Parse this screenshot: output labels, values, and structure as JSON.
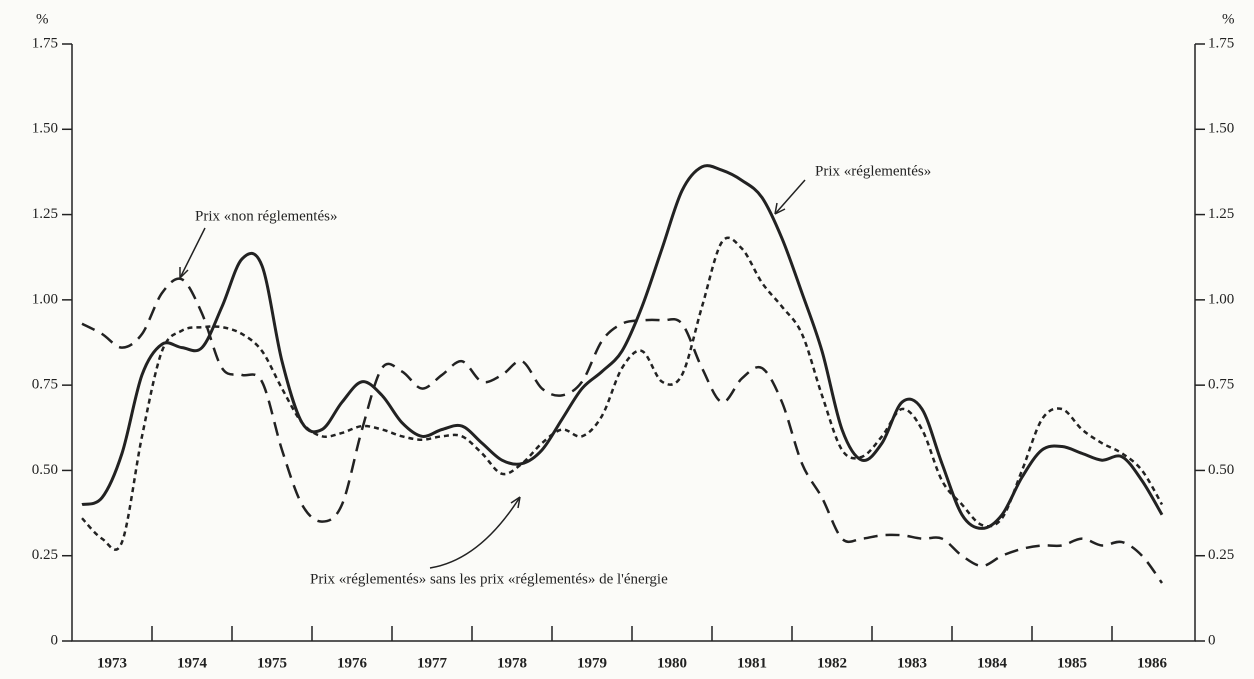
{
  "chart_data": {
    "type": "line",
    "y_unit": "%",
    "annotations": [
      "Prix «réglementés»",
      "Prix «non réglementés»",
      "Prix «réglementés» sans les prix «réglementés» de l'énergie"
    ],
    "year_labels": [
      "1973",
      "1974",
      "1975",
      "1976",
      "1977",
      "1978",
      "1979",
      "1980",
      "1981",
      "1982",
      "1983",
      "1984",
      "1985",
      "1986"
    ],
    "xlim": [
      1973,
      1987
    ],
    "xticks": [
      1974,
      1975,
      1976,
      1977,
      1978,
      1979,
      1980,
      1981,
      1982,
      1983,
      1984,
      1985,
      1986
    ],
    "ylim": [
      0,
      1.75
    ],
    "yticks": [
      0,
      0.25,
      {
        "value": 0.5,
        "label": "0.50"
      },
      {
        "value": 0.75,
        "label": "0.75"
      },
      {
        "value": 1,
        "label": "1.00"
      },
      1.25,
      {
        "value": 1.5,
        "label": "1.50"
      },
      1.75
    ],
    "x": [
      1973.125,
      1973.375,
      1973.625,
      1973.875,
      1974.125,
      1974.375,
      1974.625,
      1974.875,
      1975.125,
      1975.375,
      1975.625,
      1975.875,
      1976.125,
      1976.375,
      1976.625,
      1976.875,
      1977.125,
      1977.375,
      1977.625,
      1977.875,
      1978.125,
      1978.375,
      1978.625,
      1978.875,
      1979.125,
      1979.375,
      1979.625,
      1979.875,
      1980.125,
      1980.375,
      1980.625,
      1980.875,
      1981.125,
      1981.375,
      1981.625,
      1981.875,
      1982.125,
      1982.375,
      1982.625,
      1982.875,
      1983.125,
      1983.375,
      1983.625,
      1983.875,
      1984.125,
      1984.375,
      1984.625,
      1984.875,
      1985.125,
      1985.375,
      1985.625,
      1985.875,
      1986.125,
      1986.375,
      1986.625
    ],
    "series": [
      {
        "color": "#222222",
        "style": "solid",
        "values": [
          0.4,
          0.42,
          0.55,
          0.78,
          0.87,
          0.86,
          0.86,
          0.98,
          1.12,
          1.1,
          0.82,
          0.64,
          0.62,
          0.7,
          0.76,
          0.72,
          0.64,
          0.6,
          0.62,
          0.63,
          0.58,
          0.53,
          0.52,
          0.56,
          0.65,
          0.74,
          0.79,
          0.85,
          0.98,
          1.15,
          1.32,
          1.39,
          1.38,
          1.35,
          1.3,
          1.18,
          1.02,
          0.85,
          0.62,
          0.53,
          0.58,
          0.7,
          0.68,
          0.52,
          0.37,
          0.33,
          0.37,
          0.48,
          0.56,
          0.57,
          0.55,
          0.53,
          0.54,
          0.47,
          0.37
        ]
      },
      {
        "color": "#222222",
        "style": "dashed",
        "values": [
          0.93,
          0.9,
          0.86,
          0.9,
          1.02,
          1.06,
          0.96,
          0.8,
          0.78,
          0.76,
          0.56,
          0.4,
          0.35,
          0.4,
          0.62,
          0.8,
          0.79,
          0.74,
          0.78,
          0.82,
          0.76,
          0.78,
          0.82,
          0.74,
          0.72,
          0.76,
          0.88,
          0.93,
          0.94,
          0.94,
          0.93,
          0.8,
          0.7,
          0.77,
          0.8,
          0.7,
          0.52,
          0.42,
          0.3,
          0.3,
          0.31,
          0.31,
          0.3,
          0.3,
          0.25,
          0.22,
          0.25,
          0.27,
          0.28,
          0.28,
          0.3,
          0.28,
          0.29,
          0.25,
          0.17
        ]
      },
      {
        "color": "#222222",
        "style": "dotted",
        "values": [
          0.36,
          0.3,
          0.29,
          0.6,
          0.85,
          0.91,
          0.92,
          0.92,
          0.9,
          0.85,
          0.74,
          0.64,
          0.6,
          0.61,
          0.63,
          0.62,
          0.6,
          0.59,
          0.6,
          0.6,
          0.55,
          0.49,
          0.52,
          0.58,
          0.62,
          0.6,
          0.66,
          0.8,
          0.85,
          0.76,
          0.78,
          0.98,
          1.17,
          1.15,
          1.05,
          0.98,
          0.9,
          0.72,
          0.56,
          0.54,
          0.6,
          0.68,
          0.62,
          0.47,
          0.4,
          0.34,
          0.36,
          0.5,
          0.65,
          0.68,
          0.62,
          0.58,
          0.55,
          0.5,
          0.4
        ]
      }
    ]
  }
}
